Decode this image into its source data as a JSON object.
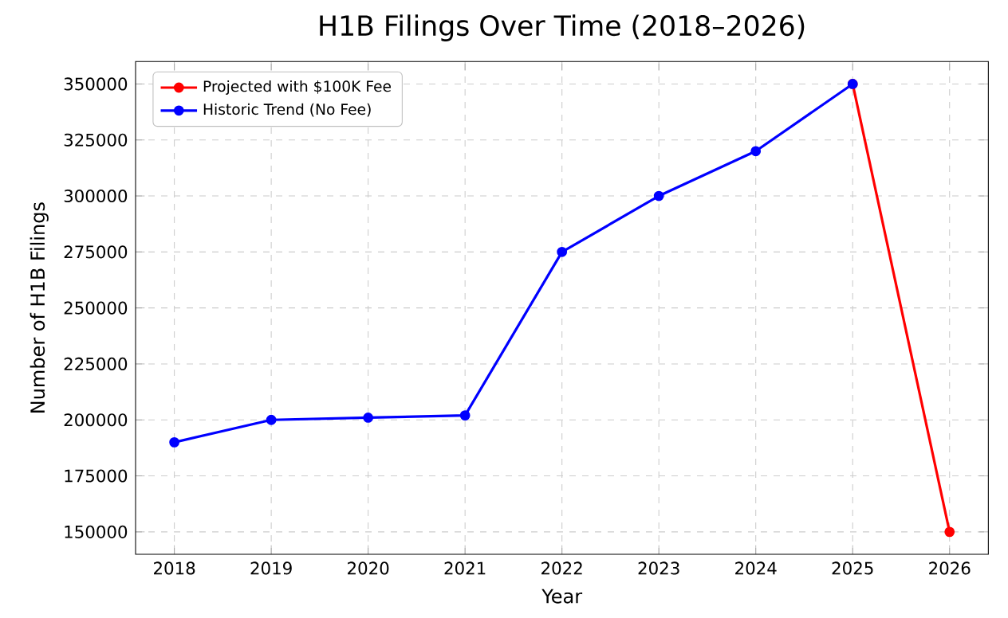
{
  "chart_data": {
    "type": "line",
    "title": "H1B Filings Over Time (2018–2026)",
    "xlabel": "Year",
    "ylabel": "Number of H1B Filings",
    "series": [
      {
        "name": "Projected with $100K Fee",
        "color": "#ff0000",
        "x": [
          2025,
          2026
        ],
        "values": [
          350000,
          150000
        ]
      },
      {
        "name": "Historic Trend (No Fee)",
        "color": "#0000ff",
        "x": [
          2018,
          2019,
          2020,
          2021,
          2022,
          2023,
          2024,
          2025
        ],
        "values": [
          190000,
          200000,
          201000,
          202000,
          275000,
          300000,
          320000,
          350000
        ]
      }
    ],
    "xlim": [
      2017.6,
      2026.4
    ],
    "ylim": [
      140000,
      360000
    ],
    "xticks": [
      2018,
      2019,
      2020,
      2021,
      2022,
      2023,
      2024,
      2025,
      2026
    ],
    "yticks": [
      150000,
      175000,
      200000,
      225000,
      250000,
      275000,
      300000,
      325000,
      350000
    ],
    "grid": true,
    "legend": "top left",
    "marker": "circle",
    "line_style": "solid"
  }
}
